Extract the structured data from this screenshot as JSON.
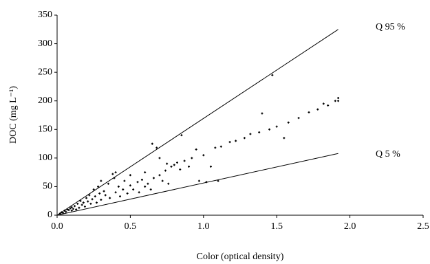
{
  "chart_data": {
    "type": "scatter",
    "x_label": "Color (optical density)",
    "y_label": "DOC (mg L⁻¹)",
    "xlim": [
      0,
      2.5
    ],
    "ylim": [
      0,
      350
    ],
    "xticks": [
      {
        "value": 0,
        "label": "0.0"
      },
      0.5,
      {
        "value": 1,
        "label": "1.0"
      },
      1.5,
      {
        "value": 2,
        "label": "2.0"
      },
      2.5
    ],
    "yticks": [
      0,
      50,
      100,
      150,
      200,
      250,
      300,
      350
    ],
    "color": "#000000",
    "points": {
      "x": [
        0.02,
        0.03,
        0.04,
        0.05,
        0.06,
        0.07,
        0.08,
        0.09,
        0.1,
        0.1,
        0.11,
        0.12,
        0.13,
        0.14,
        0.15,
        0.16,
        0.17,
        0.18,
        0.19,
        0.2,
        0.21,
        0.22,
        0.23,
        0.24,
        0.25,
        0.26,
        0.27,
        0.28,
        0.29,
        0.3,
        0.3,
        0.32,
        0.33,
        0.35,
        0.36,
        0.38,
        0.39,
        0.4,
        0.4,
        0.42,
        0.43,
        0.45,
        0.46,
        0.48,
        0.5,
        0.5,
        0.52,
        0.55,
        0.56,
        0.58,
        0.6,
        0.6,
        0.62,
        0.64,
        0.65,
        0.66,
        0.68,
        0.7,
        0.7,
        0.72,
        0.74,
        0.75,
        0.76,
        0.78,
        0.8,
        0.82,
        0.84,
        0.85,
        0.87,
        0.9,
        0.92,
        0.95,
        0.97,
        1.0,
        1.02,
        1.05,
        1.08,
        1.1,
        1.12,
        1.18,
        1.22,
        1.28,
        1.32,
        1.38,
        1.4,
        1.45,
        1.47,
        1.5,
        1.55,
        1.58,
        1.65,
        1.72,
        1.78,
        1.82,
        1.85,
        1.9,
        1.92,
        1.92
      ],
      "y": [
        3,
        5,
        4,
        8,
        6,
        10,
        9,
        12,
        8,
        14,
        11,
        16,
        10,
        20,
        13,
        25,
        18,
        22,
        15,
        30,
        24,
        35,
        20,
        28,
        45,
        33,
        22,
        50,
        38,
        60,
        27,
        42,
        35,
        55,
        30,
        72,
        65,
        40,
        75,
        50,
        33,
        45,
        60,
        38,
        70,
        52,
        45,
        58,
        40,
        62,
        50,
        75,
        55,
        45,
        125,
        65,
        118,
        70,
        100,
        60,
        78,
        90,
        55,
        85,
        88,
        92,
        80,
        140,
        95,
        85,
        100,
        115,
        60,
        105,
        58,
        85,
        118,
        60,
        120,
        128,
        130,
        135,
        142,
        145,
        178,
        150,
        245,
        155,
        135,
        162,
        170,
        180,
        185,
        195,
        192,
        200,
        205,
        200
      ]
    },
    "lines": [
      {
        "label": "Q 95 %",
        "x": [
          0,
          1.92
        ],
        "y": [
          0,
          325
        ]
      },
      {
        "label": "Q 5 %",
        "x": [
          0,
          1.92
        ],
        "y": [
          0,
          108
        ]
      }
    ]
  }
}
